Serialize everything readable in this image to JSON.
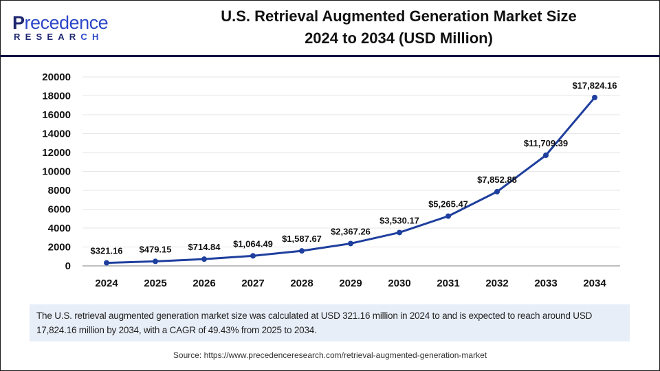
{
  "logo": {
    "top_initial": "P",
    "top_rest": "recedence",
    "bottom_main": "RESEAR",
    "bottom_accent": "CH"
  },
  "title": {
    "line1": "U.S. Retrieval Augmented Generation Market Size",
    "line2": "2024 to 2034 (USD Million)"
  },
  "colors": {
    "line": "#1f3f9e",
    "marker": "#1f3f9e",
    "grid": "#e6e6e6",
    "axis": "#bfbfbf",
    "header_rule": "#141440",
    "summary_bg": "#e8eef8"
  },
  "chart_data": {
    "type": "line",
    "title": "U.S. Retrieval Augmented Generation Market Size 2024 to 2034 (USD Million)",
    "xlabel": "",
    "ylabel": "",
    "categories": [
      "2024",
      "2025",
      "2026",
      "2027",
      "2028",
      "2029",
      "2030",
      "2031",
      "2032",
      "2033",
      "2034"
    ],
    "series": [
      {
        "name": "U.S. Retrieval Augmented Generation Market Size (USD Million)",
        "values": [
          321.16,
          479.15,
          714.84,
          1064.49,
          1587.67,
          2367.26,
          3530.17,
          5265.47,
          7852.88,
          11709.39,
          17824.16
        ],
        "labels": [
          "$321.16",
          "$479.15",
          "$714.84",
          "$1,064.49",
          "$1,587.67",
          "$2,367.26",
          "$3,530.17",
          "$5,265.47",
          "$7,852.88",
          "$11,709.39",
          "$17,824.16"
        ]
      }
    ],
    "ylim": [
      0,
      20000
    ],
    "yticks": [
      0,
      2000,
      4000,
      6000,
      8000,
      10000,
      12000,
      14000,
      16000,
      18000,
      20000
    ],
    "grid": true,
    "legend": "none"
  },
  "summary": "The U.S. retrieval augmented generation market size was calculated at USD 321.16 million in 2024 to and is expected to reach around USD 17,824.16  million by 2034, with a CAGR of 49.43% from 2025 to 2034.",
  "source": "Source: https://www.precedenceresearch.com/retrieval-augmented-generation-market"
}
